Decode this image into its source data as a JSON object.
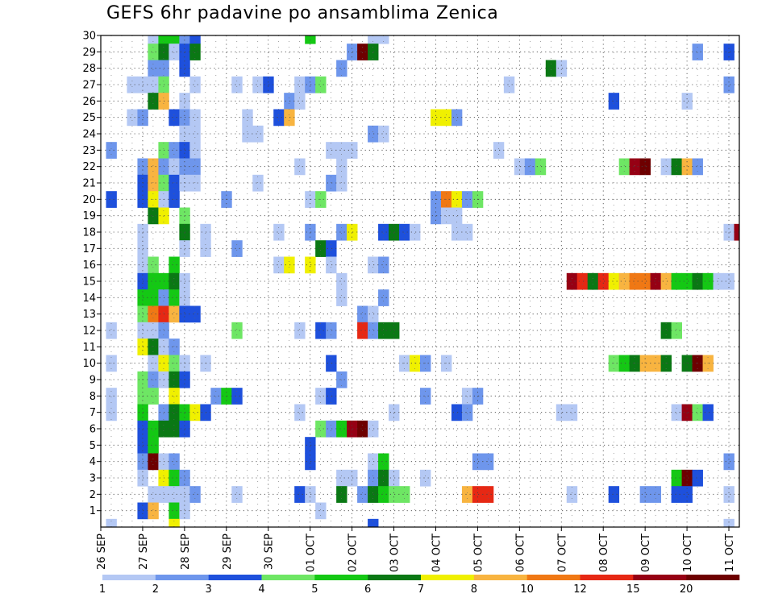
{
  "chart_data": {
    "type": "heatmap",
    "title": "GEFS 6hr padavine po ansamblima Zenica",
    "y_categories": [
      "1",
      "2",
      "3",
      "4",
      "5",
      "6",
      "7",
      "8",
      "9",
      "10",
      "11",
      "12",
      "13",
      "14",
      "15",
      "16",
      "17",
      "18",
      "19",
      "20",
      "21",
      "22",
      "23",
      "24",
      "25",
      "26",
      "27",
      "28",
      "29",
      "30"
    ],
    "x_tick_labels": [
      "26 SEP",
      "27 SEP",
      "28 SEP",
      "29 SEP",
      "30 SEP",
      "01 OCT",
      "02 OCT",
      "03 OCT",
      "04 OCT",
      "05 OCT",
      "06 OCT",
      "07 OCT",
      "08 OCT",
      "09 OCT",
      "10 OCT",
      "11 OCT"
    ],
    "x_steps": 61,
    "color_levels": [
      1,
      2,
      3,
      4,
      5,
      6,
      7,
      8,
      10,
      12,
      15,
      20
    ],
    "colorbar_labels": [
      "1",
      "2",
      "3",
      "4",
      "5",
      "6",
      "7",
      "8",
      "10",
      "12",
      "15",
      "20"
    ],
    "colors": [
      "#b4c8f4",
      "#6e96ec",
      "#1e50dc",
      "#6ee664",
      "#14c814",
      "#0a7814",
      "#f0f000",
      "#f8b440",
      "#f07814",
      "#e62814",
      "#960014",
      "#6e0000"
    ],
    "grid": true,
    "cells": [
      [
        30,
        5,
        1
      ],
      [
        30,
        6,
        5
      ],
      [
        30,
        7,
        5
      ],
      [
        30,
        8,
        2
      ],
      [
        30,
        9,
        3
      ],
      [
        30,
        20,
        5
      ],
      [
        30,
        26,
        1
      ],
      [
        30,
        27,
        1
      ],
      [
        29,
        5,
        4
      ],
      [
        29,
        6,
        6
      ],
      [
        29,
        7,
        1
      ],
      [
        29,
        8,
        3
      ],
      [
        29,
        9,
        6
      ],
      [
        29,
        24,
        2
      ],
      [
        29,
        25,
        12
      ],
      [
        29,
        26,
        6
      ],
      [
        29,
        57,
        2
      ],
      [
        29,
        60,
        3
      ],
      [
        28,
        5,
        2
      ],
      [
        28,
        6,
        2
      ],
      [
        28,
        8,
        3
      ],
      [
        28,
        23,
        2
      ],
      [
        28,
        43,
        6
      ],
      [
        28,
        44,
        1
      ],
      [
        27,
        3,
        1
      ],
      [
        27,
        4,
        1
      ],
      [
        27,
        5,
        1
      ],
      [
        27,
        6,
        4
      ],
      [
        27,
        9,
        1
      ],
      [
        27,
        13,
        1
      ],
      [
        27,
        15,
        1
      ],
      [
        27,
        16,
        3
      ],
      [
        27,
        19,
        1
      ],
      [
        27,
        20,
        2
      ],
      [
        27,
        21,
        4
      ],
      [
        27,
        39,
        1
      ],
      [
        27,
        60,
        2
      ],
      [
        26,
        5,
        6
      ],
      [
        26,
        6,
        8
      ],
      [
        26,
        8,
        1
      ],
      [
        26,
        18,
        2
      ],
      [
        26,
        19,
        1
      ],
      [
        26,
        49,
        3
      ],
      [
        26,
        56,
        1
      ],
      [
        25,
        3,
        1
      ],
      [
        25,
        4,
        2
      ],
      [
        25,
        7,
        3
      ],
      [
        25,
        8,
        2
      ],
      [
        25,
        9,
        1
      ],
      [
        25,
        14,
        1
      ],
      [
        25,
        17,
        3
      ],
      [
        25,
        18,
        8
      ],
      [
        25,
        32,
        7
      ],
      [
        25,
        33,
        7
      ],
      [
        25,
        34,
        2
      ],
      [
        24,
        8,
        1
      ],
      [
        24,
        9,
        1
      ],
      [
        24,
        14,
        1
      ],
      [
        24,
        15,
        1
      ],
      [
        24,
        26,
        2
      ],
      [
        24,
        27,
        1
      ],
      [
        23,
        1,
        2
      ],
      [
        23,
        6,
        4
      ],
      [
        23,
        7,
        2
      ],
      [
        23,
        8,
        3
      ],
      [
        23,
        9,
        1
      ],
      [
        23,
        22,
        1
      ],
      [
        23,
        23,
        1
      ],
      [
        23,
        24,
        1
      ],
      [
        23,
        38,
        1
      ],
      [
        22,
        4,
        2
      ],
      [
        22,
        5,
        8
      ],
      [
        22,
        6,
        2
      ],
      [
        22,
        7,
        1
      ],
      [
        22,
        8,
        2
      ],
      [
        22,
        9,
        2
      ],
      [
        22,
        19,
        1
      ],
      [
        22,
        23,
        1
      ],
      [
        22,
        40,
        1
      ],
      [
        22,
        41,
        2
      ],
      [
        22,
        42,
        4
      ],
      [
        22,
        50,
        4
      ],
      [
        22,
        51,
        11
      ],
      [
        22,
        52,
        12
      ],
      [
        22,
        54,
        1
      ],
      [
        22,
        55,
        6
      ],
      [
        22,
        56,
        8
      ],
      [
        22,
        57,
        2
      ],
      [
        21,
        4,
        3
      ],
      [
        21,
        5,
        8
      ],
      [
        21,
        6,
        4
      ],
      [
        21,
        7,
        3
      ],
      [
        21,
        8,
        1
      ],
      [
        21,
        9,
        1
      ],
      [
        21,
        15,
        1
      ],
      [
        21,
        22,
        2
      ],
      [
        21,
        23,
        1
      ],
      [
        20,
        1,
        3
      ],
      [
        20,
        4,
        3
      ],
      [
        20,
        5,
        7
      ],
      [
        20,
        6,
        1
      ],
      [
        20,
        7,
        3
      ],
      [
        20,
        12,
        2
      ],
      [
        20,
        20,
        1
      ],
      [
        20,
        21,
        4
      ],
      [
        20,
        32,
        2
      ],
      [
        20,
        33,
        9
      ],
      [
        20,
        34,
        7
      ],
      [
        20,
        35,
        2
      ],
      [
        20,
        36,
        4
      ],
      [
        19,
        5,
        6
      ],
      [
        19,
        6,
        7
      ],
      [
        19,
        8,
        4
      ],
      [
        19,
        32,
        2
      ],
      [
        19,
        33,
        1
      ],
      [
        19,
        34,
        1
      ],
      [
        18,
        4,
        1
      ],
      [
        18,
        8,
        6
      ],
      [
        18,
        10,
        1
      ],
      [
        18,
        17,
        1
      ],
      [
        18,
        20,
        2
      ],
      [
        18,
        23,
        2
      ],
      [
        18,
        24,
        7
      ],
      [
        18,
        27,
        3
      ],
      [
        18,
        28,
        6
      ],
      [
        18,
        29,
        3
      ],
      [
        18,
        30,
        1
      ],
      [
        18,
        34,
        1
      ],
      [
        18,
        35,
        1
      ],
      [
        18,
        60,
        1
      ],
      [
        18,
        61,
        11
      ],
      [
        17,
        4,
        1
      ],
      [
        17,
        8,
        1
      ],
      [
        17,
        10,
        1
      ],
      [
        17,
        13,
        2
      ],
      [
        17,
        21,
        6
      ],
      [
        17,
        22,
        3
      ],
      [
        16,
        4,
        1
      ],
      [
        16,
        5,
        4
      ],
      [
        16,
        7,
        5
      ],
      [
        16,
        17,
        1
      ],
      [
        16,
        18,
        7
      ],
      [
        16,
        20,
        7
      ],
      [
        16,
        22,
        1
      ],
      [
        16,
        26,
        1
      ],
      [
        16,
        27,
        2
      ],
      [
        15,
        4,
        3
      ],
      [
        15,
        5,
        5
      ],
      [
        15,
        6,
        5
      ],
      [
        15,
        7,
        6
      ],
      [
        15,
        8,
        1
      ],
      [
        15,
        23,
        1
      ],
      [
        15,
        45,
        11
      ],
      [
        15,
        46,
        10
      ],
      [
        15,
        47,
        6
      ],
      [
        15,
        48,
        10
      ],
      [
        15,
        49,
        7
      ],
      [
        15,
        50,
        8
      ],
      [
        15,
        51,
        9
      ],
      [
        15,
        52,
        9
      ],
      [
        15,
        53,
        11
      ],
      [
        15,
        54,
        8
      ],
      [
        15,
        55,
        5
      ],
      [
        15,
        56,
        5
      ],
      [
        15,
        57,
        6
      ],
      [
        15,
        58,
        5
      ],
      [
        15,
        59,
        1
      ],
      [
        15,
        60,
        1
      ],
      [
        14,
        4,
        5
      ],
      [
        14,
        5,
        5
      ],
      [
        14,
        6,
        2
      ],
      [
        14,
        7,
        5
      ],
      [
        14,
        8,
        1
      ],
      [
        14,
        23,
        1
      ],
      [
        14,
        27,
        2
      ],
      [
        13,
        4,
        4
      ],
      [
        13,
        5,
        9
      ],
      [
        13,
        6,
        10
      ],
      [
        13,
        7,
        8
      ],
      [
        13,
        8,
        3
      ],
      [
        13,
        9,
        3
      ],
      [
        13,
        25,
        2
      ],
      [
        13,
        26,
        1
      ],
      [
        12,
        1,
        1
      ],
      [
        12,
        4,
        1
      ],
      [
        12,
        5,
        1
      ],
      [
        12,
        6,
        2
      ],
      [
        12,
        13,
        4
      ],
      [
        12,
        19,
        1
      ],
      [
        12,
        21,
        3
      ],
      [
        12,
        22,
        2
      ],
      [
        12,
        25,
        10
      ],
      [
        12,
        26,
        2
      ],
      [
        12,
        27,
        6
      ],
      [
        12,
        28,
        6
      ],
      [
        12,
        54,
        6
      ],
      [
        12,
        55,
        4
      ],
      [
        11,
        4,
        7
      ],
      [
        11,
        5,
        6
      ],
      [
        11,
        6,
        1
      ],
      [
        11,
        7,
        2
      ],
      [
        10,
        1,
        1
      ],
      [
        10,
        5,
        1
      ],
      [
        10,
        6,
        7
      ],
      [
        10,
        7,
        4
      ],
      [
        10,
        8,
        1
      ],
      [
        10,
        10,
        1
      ],
      [
        10,
        22,
        3
      ],
      [
        10,
        29,
        1
      ],
      [
        10,
        30,
        7
      ],
      [
        10,
        31,
        2
      ],
      [
        10,
        33,
        1
      ],
      [
        10,
        49,
        4
      ],
      [
        10,
        50,
        5
      ],
      [
        10,
        51,
        6
      ],
      [
        10,
        52,
        8
      ],
      [
        10,
        53,
        8
      ],
      [
        10,
        54,
        6
      ],
      [
        10,
        56,
        6
      ],
      [
        10,
        57,
        12
      ],
      [
        10,
        58,
        8
      ],
      [
        9,
        4,
        4
      ],
      [
        9,
        5,
        2
      ],
      [
        9,
        6,
        1
      ],
      [
        9,
        7,
        6
      ],
      [
        9,
        8,
        3
      ],
      [
        9,
        23,
        2
      ],
      [
        8,
        1,
        1
      ],
      [
        8,
        4,
        4
      ],
      [
        8,
        5,
        4
      ],
      [
        8,
        7,
        7
      ],
      [
        8,
        11,
        2
      ],
      [
        8,
        12,
        5
      ],
      [
        8,
        13,
        3
      ],
      [
        8,
        21,
        1
      ],
      [
        8,
        22,
        3
      ],
      [
        8,
        31,
        2
      ],
      [
        8,
        35,
        1
      ],
      [
        8,
        36,
        2
      ],
      [
        7,
        1,
        1
      ],
      [
        7,
        4,
        5
      ],
      [
        7,
        6,
        2
      ],
      [
        7,
        7,
        6
      ],
      [
        7,
        8,
        5
      ],
      [
        7,
        9,
        7
      ],
      [
        7,
        10,
        3
      ],
      [
        7,
        19,
        1
      ],
      [
        7,
        28,
        1
      ],
      [
        7,
        34,
        3
      ],
      [
        7,
        35,
        2
      ],
      [
        7,
        44,
        1
      ],
      [
        7,
        45,
        1
      ],
      [
        7,
        55,
        1
      ],
      [
        7,
        56,
        11
      ],
      [
        7,
        57,
        4
      ],
      [
        7,
        58,
        3
      ],
      [
        6,
        4,
        3
      ],
      [
        6,
        5,
        5
      ],
      [
        6,
        6,
        6
      ],
      [
        6,
        7,
        6
      ],
      [
        6,
        8,
        3
      ],
      [
        6,
        21,
        4
      ],
      [
        6,
        22,
        2
      ],
      [
        6,
        23,
        5
      ],
      [
        6,
        24,
        11
      ],
      [
        6,
        25,
        12
      ],
      [
        6,
        26,
        1
      ],
      [
        5,
        4,
        3
      ],
      [
        5,
        5,
        5
      ],
      [
        5,
        20,
        3
      ],
      [
        4,
        4,
        2
      ],
      [
        4,
        5,
        12
      ],
      [
        4,
        6,
        1
      ],
      [
        4,
        7,
        2
      ],
      [
        4,
        20,
        3
      ],
      [
        4,
        26,
        1
      ],
      [
        4,
        27,
        5
      ],
      [
        4,
        36,
        2
      ],
      [
        4,
        37,
        2
      ],
      [
        4,
        60,
        2
      ],
      [
        3,
        4,
        1
      ],
      [
        3,
        6,
        7
      ],
      [
        3,
        7,
        5
      ],
      [
        3,
        8,
        2
      ],
      [
        3,
        23,
        1
      ],
      [
        3,
        24,
        1
      ],
      [
        3,
        26,
        2
      ],
      [
        3,
        27,
        6
      ],
      [
        3,
        28,
        1
      ],
      [
        3,
        31,
        1
      ],
      [
        3,
        55,
        5
      ],
      [
        3,
        56,
        12
      ],
      [
        3,
        57,
        3
      ],
      [
        2,
        5,
        1
      ],
      [
        2,
        6,
        1
      ],
      [
        2,
        7,
        1
      ],
      [
        2,
        8,
        1
      ],
      [
        2,
        9,
        2
      ],
      [
        2,
        13,
        1
      ],
      [
        2,
        19,
        3
      ],
      [
        2,
        20,
        1
      ],
      [
        2,
        23,
        6
      ],
      [
        2,
        25,
        2
      ],
      [
        2,
        26,
        6
      ],
      [
        2,
        27,
        5
      ],
      [
        2,
        28,
        4
      ],
      [
        2,
        29,
        4
      ],
      [
        2,
        35,
        8
      ],
      [
        2,
        36,
        10
      ],
      [
        2,
        37,
        10
      ],
      [
        2,
        45,
        1
      ],
      [
        2,
        49,
        3
      ],
      [
        2,
        52,
        2
      ],
      [
        2,
        53,
        2
      ],
      [
        2,
        55,
        3
      ],
      [
        2,
        56,
        3
      ],
      [
        2,
        60,
        1
      ],
      [
        1,
        4,
        3
      ],
      [
        1,
        5,
        8
      ],
      [
        1,
        7,
        5
      ],
      [
        1,
        8,
        1
      ],
      [
        1,
        21,
        1
      ],
      [
        0,
        1,
        1
      ],
      [
        0,
        7,
        7
      ],
      [
        0,
        26,
        3
      ],
      [
        0,
        60,
        1
      ]
    ]
  }
}
